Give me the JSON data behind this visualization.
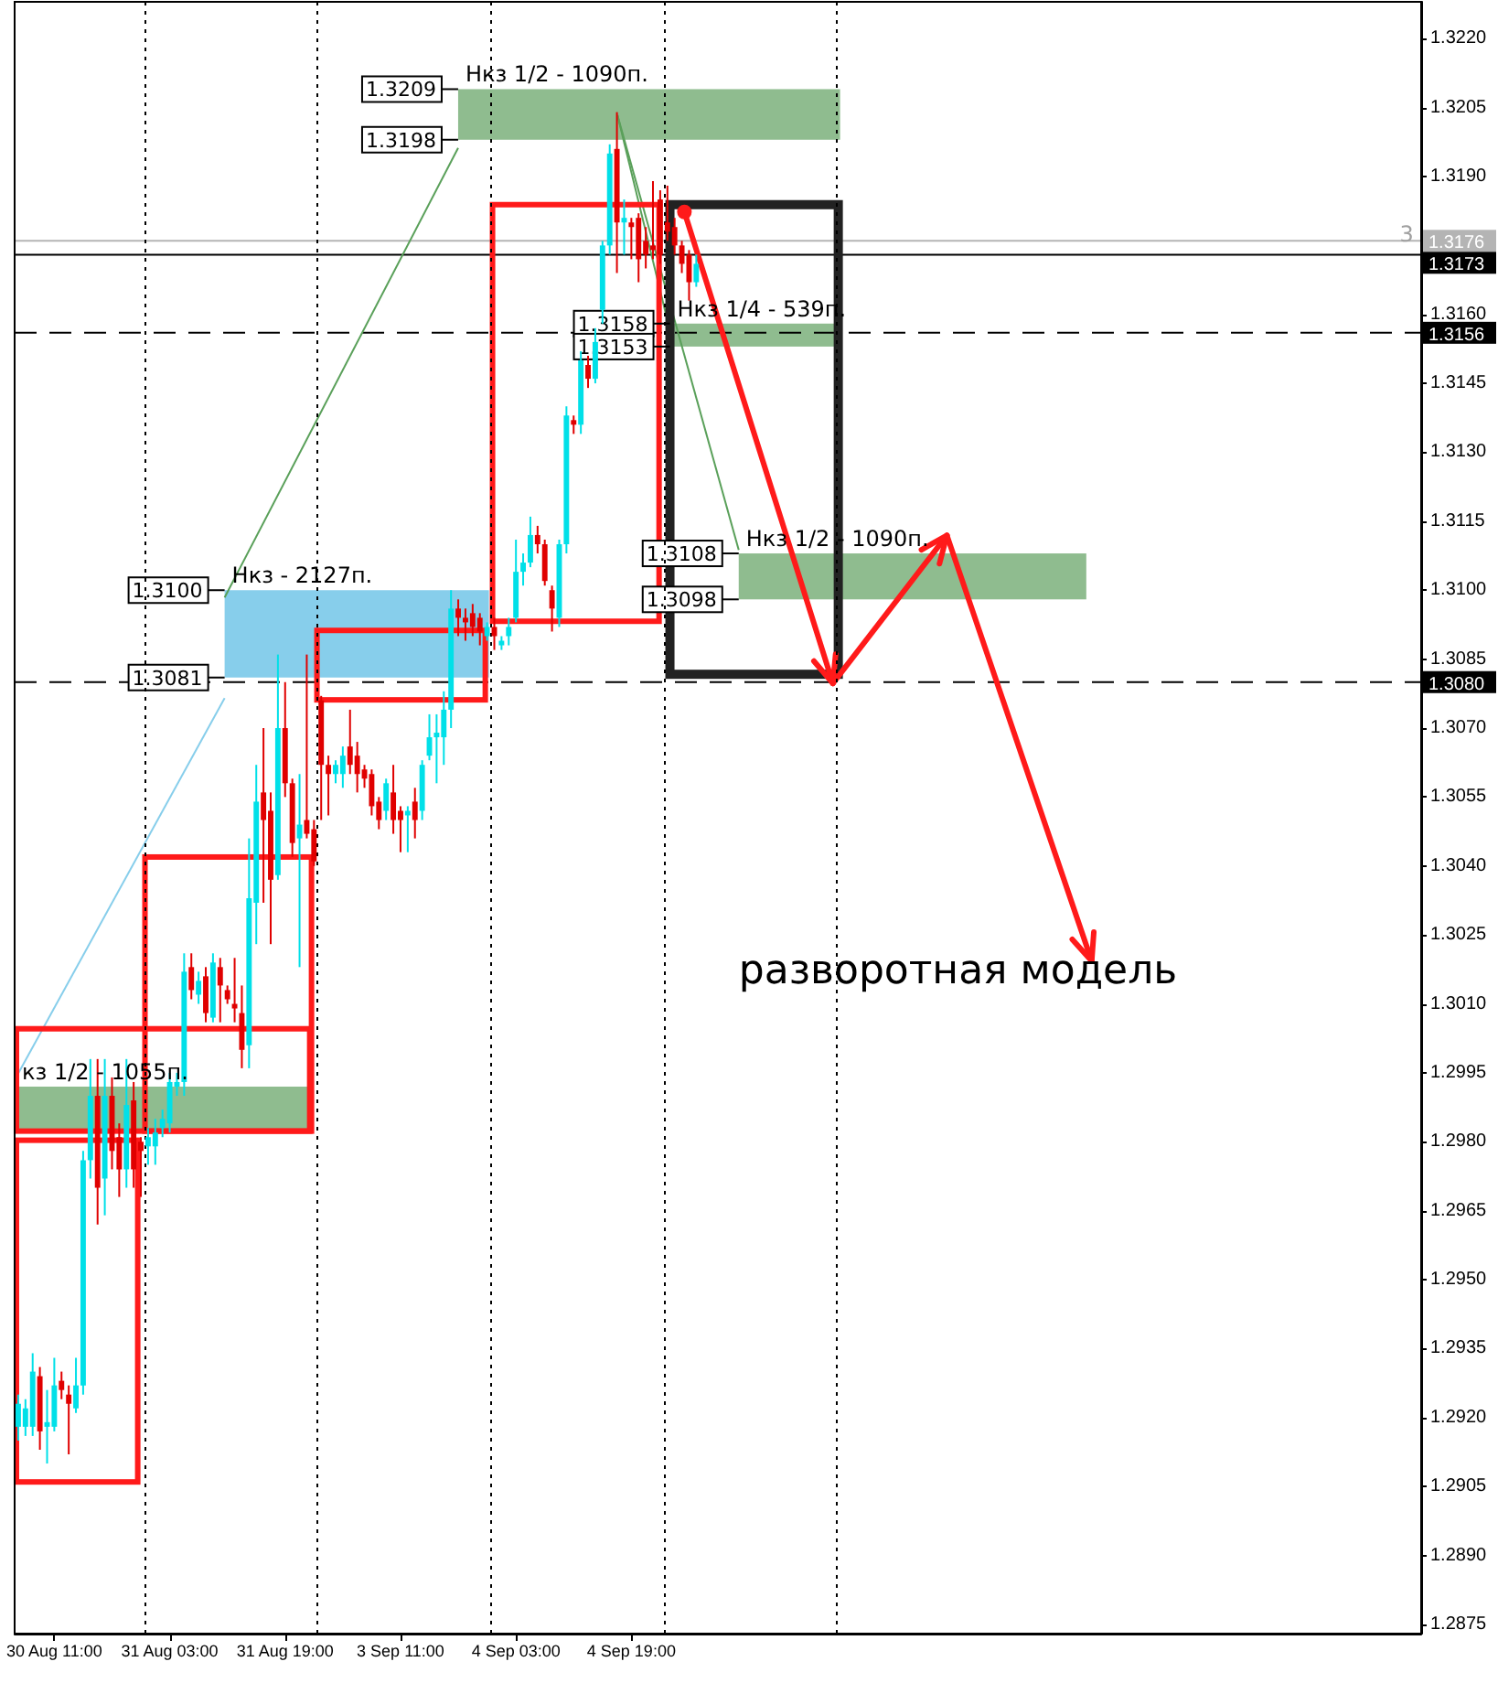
{
  "chart_data": {
    "type": "candlestick",
    "categories": [
      null,
      null,
      null,
      null,
      null,
      "30 Aug 11:00",
      null,
      null,
      null,
      null,
      null,
      null,
      null,
      null,
      null,
      null,
      null,
      null,
      null,
      null,
      null,
      "31 Aug 03:00",
      null,
      null,
      null,
      null,
      null,
      null,
      null,
      null,
      null,
      null,
      null,
      null,
      null,
      null,
      null,
      "31 Aug 19:00",
      null,
      null,
      null,
      null,
      null,
      null,
      null,
      null,
      null,
      null,
      null,
      null,
      null,
      null,
      null,
      "3 Sep 11:00",
      null,
      null,
      null,
      null,
      null,
      null,
      null,
      null,
      null,
      null,
      null,
      null,
      null,
      null,
      null,
      "4 Sep 03:00",
      null,
      null,
      null,
      null,
      null,
      null,
      null,
      null,
      null,
      null,
      null,
      null,
      null,
      null,
      null,
      "4 Sep 19:00",
      null,
      null,
      null,
      null,
      null,
      null,
      null,
      null,
      null,
      null,
      null,
      null,
      null,
      null,
      null,
      null,
      null,
      null,
      null,
      null,
      null,
      null,
      null,
      null,
      null,
      null,
      null,
      null,
      null,
      null,
      null,
      null,
      null,
      null,
      null,
      null,
      null,
      null,
      null,
      null,
      null,
      null,
      null,
      null,
      null,
      null,
      null,
      null,
      null,
      null,
      null,
      null,
      null,
      null,
      null,
      null,
      null,
      null,
      null,
      null,
      null,
      null,
      null,
      null,
      null,
      null,
      null,
      null,
      null,
      null,
      null,
      null,
      null,
      null,
      null,
      null,
      null,
      null,
      null,
      null,
      null,
      null,
      null,
      null,
      null,
      null,
      null,
      null,
      null,
      null,
      null,
      null,
      null,
      null,
      null,
      null,
      null,
      null,
      null,
      null,
      null,
      null,
      null,
      null,
      null,
      null,
      null,
      null,
      null
    ],
    "ohlc": [
      [
        1.2918,
        1.2925,
        1.2915,
        1.2923
      ],
      [
        1.2918,
        1.2924,
        1.2916,
        1.2922
      ],
      [
        1.2918,
        1.2934,
        1.2916,
        1.293
      ],
      [
        1.2929,
        1.2931,
        1.2913,
        1.2917
      ],
      [
        1.2918,
        1.2926,
        1.291,
        1.2919
      ],
      [
        1.2918,
        1.2933,
        1.2917,
        1.2927
      ],
      [
        1.2928,
        1.293,
        1.2924,
        1.2926
      ],
      [
        1.2925,
        1.2927,
        1.2912,
        1.2923
      ],
      [
        1.2922,
        1.2933,
        1.2921,
        1.2927
      ],
      [
        1.2927,
        1.2978,
        1.2925,
        1.2976
      ],
      [
        1.2976,
        1.2998,
        1.2972,
        1.299
      ],
      [
        1.299,
        1.2998,
        1.2962,
        1.297
      ],
      [
        1.2972,
        1.2998,
        1.2964,
        1.299
      ],
      [
        1.299,
        1.2994,
        1.2974,
        1.2978
      ],
      [
        1.2981,
        1.2984,
        1.2968,
        1.2974
      ],
      [
        1.2974,
        1.2998,
        1.297,
        1.2988
      ],
      [
        1.2989,
        1.2993,
        1.297,
        1.2974
      ],
      [
        1.298,
        1.2981,
        1.2968,
        1.2978
      ],
      [
        1.2979,
        1.2983,
        1.2975,
        1.2981
      ],
      [
        1.2979,
        1.2985,
        1.2975,
        1.2982
      ],
      [
        1.2983,
        1.2987,
        1.2981,
        1.2985
      ],
      [
        1.2984,
        1.2995,
        1.2982,
        1.2993
      ],
      [
        1.2992,
        1.2995,
        1.299,
        1.2993
      ],
      [
        1.2993,
        1.3021,
        1.299,
        1.3017
      ],
      [
        1.3018,
        1.3021,
        1.3011,
        1.3013
      ],
      [
        1.3012,
        1.3017,
        1.301,
        1.3015
      ],
      [
        1.3016,
        1.3018,
        1.3006,
        1.3008
      ],
      [
        1.3007,
        1.3021,
        1.3006,
        1.3019
      ],
      [
        1.3018,
        1.302,
        1.3006,
        1.3014
      ],
      [
        1.3013,
        1.3014,
        1.301,
        1.3011
      ],
      [
        1.301,
        1.302,
        1.3006,
        1.3009
      ],
      [
        1.3008,
        1.3014,
        1.2996,
        1.3
      ],
      [
        1.3001,
        1.3046,
        1.2996,
        1.3033
      ],
      [
        1.3032,
        1.3062,
        1.3023,
        1.3054
      ],
      [
        1.3056,
        1.307,
        1.3032,
        1.305
      ],
      [
        1.3052,
        1.3056,
        1.3023,
        1.3037
      ],
      [
        1.3038,
        1.3086,
        1.3037,
        1.307
      ],
      [
        1.307,
        1.308,
        1.3055,
        1.3058
      ],
      [
        1.3058,
        1.3059,
        1.3042,
        1.3045
      ],
      [
        1.3046,
        1.306,
        1.3018,
        1.3049
      ],
      [
        1.305,
        1.3086,
        1.3046,
        1.3047
      ],
      [
        1.3048,
        1.305,
        1.304,
        1.3041
      ],
      [
        1.3076,
        1.3077,
        1.305,
        1.3062
      ],
      [
        1.3062,
        1.3064,
        1.3051,
        1.306
      ],
      [
        1.306,
        1.3063,
        1.3058,
        1.3062
      ],
      [
        1.306,
        1.3066,
        1.3057,
        1.3064
      ],
      [
        1.3066,
        1.3074,
        1.306,
        1.3062
      ],
      [
        1.3064,
        1.3067,
        1.3056,
        1.306
      ],
      [
        1.3061,
        1.3062,
        1.3057,
        1.3059
      ],
      [
        1.306,
        1.3061,
        1.3051,
        1.3053
      ],
      [
        1.3054,
        1.3055,
        1.3048,
        1.305
      ],
      [
        1.3052,
        1.3059,
        1.305,
        1.3058
      ],
      [
        1.3056,
        1.3062,
        1.3047,
        1.305
      ],
      [
        1.3052,
        1.3053,
        1.3043,
        1.305
      ],
      [
        1.3051,
        1.3053,
        1.3043,
        1.3052
      ],
      [
        1.3054,
        1.3057,
        1.3046,
        1.305
      ],
      [
        1.3052,
        1.3063,
        1.305,
        1.3062
      ],
      [
        1.3064,
        1.3073,
        1.3063,
        1.3068
      ],
      [
        1.3068,
        1.3073,
        1.3058,
        1.3069
      ],
      [
        1.3068,
        1.3078,
        1.3062,
        1.3074
      ],
      [
        1.3074,
        1.31,
        1.307,
        1.3096
      ],
      [
        1.3096,
        1.3098,
        1.309,
        1.3094
      ],
      [
        1.3094,
        1.3096,
        1.3089,
        1.3093
      ],
      [
        1.3095,
        1.3097,
        1.309,
        1.3092
      ],
      [
        1.3094,
        1.3095,
        1.3088,
        1.3091
      ],
      [
        1.309,
        1.3093,
        1.3089,
        1.3092
      ],
      [
        1.3092,
        1.3094,
        1.3087,
        1.309
      ],
      [
        1.3088,
        1.309,
        1.3087,
        1.3089
      ],
      [
        1.309,
        1.3094,
        1.3088,
        1.3092
      ],
      [
        1.3094,
        1.3111,
        1.3093,
        1.3104
      ],
      [
        1.3104,
        1.3108,
        1.3101,
        1.3106
      ],
      [
        1.3106,
        1.3116,
        1.3105,
        1.3112
      ],
      [
        1.3112,
        1.3114,
        1.3108,
        1.311
      ],
      [
        1.311,
        1.3111,
        1.3101,
        1.3102
      ],
      [
        1.31,
        1.3101,
        1.3091,
        1.3096
      ],
      [
        1.3094,
        1.3111,
        1.3092,
        1.311
      ],
      [
        1.311,
        1.314,
        1.3108,
        1.3138
      ],
      [
        1.3137,
        1.3138,
        1.3134,
        1.3136
      ],
      [
        1.3136,
        1.3152,
        1.3134,
        1.315
      ],
      [
        1.3149,
        1.3151,
        1.3144,
        1.3146
      ],
      [
        1.3146,
        1.3157,
        1.3145,
        1.3154
      ],
      [
        1.3161,
        1.3176,
        1.3158,
        1.3175
      ],
      [
        1.3175,
        1.3197,
        1.3173,
        1.3195
      ],
      [
        1.3196,
        1.3204,
        1.3169,
        1.318
      ],
      [
        1.318,
        1.3185,
        1.3173,
        1.3181
      ],
      [
        1.318,
        1.3181,
        1.3172,
        1.3179
      ],
      [
        1.3181,
        1.3182,
        1.3167,
        1.3172
      ],
      [
        1.3176,
        1.3179,
        1.317,
        1.3173
      ],
      [
        1.3175,
        1.3189,
        1.3172,
        1.3174
      ],
      [
        1.3185,
        1.3187,
        1.3171,
        1.3173
      ],
      [
        1.318,
        1.3188,
        1.3176,
        1.3178
      ],
      [
        1.3179,
        1.3181,
        1.3173,
        1.3175
      ],
      [
        1.3175,
        1.3176,
        1.3169,
        1.3171
      ],
      [
        1.3173,
        1.3174,
        1.3163,
        1.3167
      ],
      [
        1.3167,
        1.3173,
        1.3166,
        1.3171
      ],
      null,
      null,
      null,
      null,
      null,
      null,
      null,
      null,
      null,
      null,
      null,
      null,
      null,
      null,
      null,
      null,
      null,
      null,
      null,
      null,
      null,
      null,
      null,
      null,
      null,
      null,
      null,
      null,
      null,
      null,
      null,
      null,
      null,
      null,
      null,
      null,
      null,
      null,
      null,
      null,
      null,
      null,
      null,
      null,
      null,
      null,
      null,
      null,
      null,
      null,
      null,
      null,
      null,
      null,
      null,
      null,
      null,
      null,
      null,
      null,
      null,
      null,
      null,
      null,
      null,
      null,
      null,
      null,
      null,
      null,
      null,
      null,
      null,
      null,
      null,
      null,
      null,
      null,
      null,
      null,
      null,
      null,
      null,
      null,
      null,
      null,
      null,
      null,
      null,
      null,
      null,
      null,
      null,
      null,
      null,
      null,
      null,
      null,
      null,
      null
    ],
    "colors": [
      "#00e0e8",
      "#00e0e8",
      "#00e0e8",
      "#e00000",
      "#00e0e8",
      "#00e0e8",
      "#e00000",
      "#e00000",
      "#00e0e8",
      "#00e0e8",
      "#00e0e8",
      "#e00000",
      "#00e0e8",
      "#e00000",
      "#e00000",
      "#00e0e8",
      "#e00000",
      "#e00000",
      "#00e0e8",
      "#00e0e8",
      "#00e0e8",
      "#00e0e8",
      "#00e0e8",
      "#00e0e8",
      "#e00000",
      "#00e0e8",
      "#e00000",
      "#00e0e8",
      "#e00000",
      "#e00000",
      "#e00000",
      "#e00000",
      "#00e0e8",
      "#00e0e8",
      "#e00000",
      "#e00000",
      "#00e0e8",
      "#e00000",
      "#e00000",
      "#00e0e8",
      "#e00000",
      "#e00000",
      "#e00000",
      "#e00000",
      "#00e0e8",
      "#00e0e8",
      "#e00000",
      "#e00000",
      "#e00000",
      "#e00000",
      "#e00000",
      "#00e0e8",
      "#e00000",
      "#e00000",
      "#00e0e8",
      "#e00000",
      "#00e0e8",
      "#00e0e8",
      "#00e0e8",
      "#00e0e8",
      "#00e0e8",
      "#e00000",
      "#e00000",
      "#e00000",
      "#e00000",
      "#00e0e8",
      "#e00000",
      "#00e0e8",
      "#00e0e8",
      "#00e0e8",
      "#00e0e8",
      "#00e0e8",
      "#e00000",
      "#e00000",
      "#e00000",
      "#00e0e8",
      "#00e0e8",
      "#e00000",
      "#00e0e8",
      "#e00000",
      "#00e0e8",
      "#00e0e8",
      "#00e0e8",
      "#e00000",
      "#00e0e8",
      "#e00000",
      "#e00000",
      "#e00000",
      "#e00000",
      "#e00000",
      "#e00000",
      "#e00000",
      "#e00000",
      "#e00000",
      "#00e0e8",
      null,
      null,
      null,
      null,
      null,
      null,
      null,
      null,
      null,
      null,
      null,
      null,
      null,
      null,
      null,
      null,
      null,
      null,
      null,
      null,
      null,
      null,
      null,
      null,
      null,
      null,
      null,
      null,
      null,
      null,
      null,
      null,
      null,
      null,
      null,
      null,
      null,
      null,
      null,
      null,
      null,
      null,
      null,
      null,
      null,
      null,
      null,
      null,
      null,
      null,
      null,
      null,
      null,
      null,
      null,
      null,
      null,
      null,
      null,
      null,
      null,
      null,
      null,
      null,
      null,
      null,
      null,
      null,
      null,
      null,
      null,
      null,
      null,
      null,
      null,
      null,
      null,
      null,
      null,
      null,
      null,
      null,
      null,
      null,
      null,
      null,
      null,
      null,
      null,
      null,
      null,
      null,
      null,
      null,
      null,
      null,
      null,
      null,
      null,
      null
    ],
    "ylim": [
      1.2873,
      1.3228
    ],
    "yticks": [
      1.2875,
      {
        "value": 1.289,
        "label": "1.2890"
      },
      1.2905,
      {
        "value": 1.292,
        "label": "1.2920"
      },
      1.2935,
      {
        "value": 1.295,
        "label": "1.2950"
      },
      1.2965,
      {
        "value": 1.298,
        "label": "1.2980"
      },
      1.2995,
      {
        "value": 1.301,
        "label": "1.3010"
      },
      1.3025,
      {
        "value": 1.304,
        "label": "1.3040"
      },
      1.3055,
      {
        "value": 1.307,
        "label": "1.3070"
      },
      1.3085,
      {
        "value": 1.31,
        "label": "1.3100"
      },
      1.3115,
      {
        "value": 1.313,
        "label": "1.3130"
      },
      1.3145,
      {
        "value": 1.316,
        "label": "1.3160"
      },
      {
        "value": 1.319,
        "label": "1.3190"
      },
      1.3205,
      {
        "value": 1.322,
        "label": "1.3220"
      }
    ],
    "ref_lines": [
      {
        "axis": "y",
        "value": 1.3156,
        "label": "1.3156",
        "color": "#000000",
        "line_style": "dashed"
      },
      {
        "axis": "y",
        "value": 1.308,
        "label": "1.3080",
        "color": "#000000",
        "line_style": "dashed"
      },
      {
        "axis": "y",
        "value": 1.3176,
        "label": "1.3176",
        "color": "#b4b4b4",
        "line_style": "solid"
      },
      {
        "axis": "y",
        "value": 1.3173,
        "label": "1.3173",
        "color": "#000000",
        "line_style": "solid"
      }
    ],
    "bands": [
      {
        "axis": "y",
        "from": 1.3198,
        "to": 1.3209,
        "label": "Нкз 1/2 - 1090п.",
        "color": "#8fbc8f"
      },
      {
        "axis": "y",
        "from": 1.3153,
        "to": 1.3158,
        "label": "Нкз 1/4 - 539п.",
        "color": "#8fbc8f"
      },
      {
        "axis": "y",
        "from": 1.3098,
        "to": 1.3108,
        "label": "Нкз 1/2 - 1090п.",
        "color": "#8fbc8f"
      },
      {
        "axis": "y",
        "from": 1.3081,
        "to": 1.31,
        "label": "Нкз - 2127п.",
        "color": "#87ceeb"
      },
      {
        "axis": "y",
        "from": 1.2982,
        "to": 1.2992,
        "label": "кз 1/2 - 1055п.",
        "color": "#8fbc8f"
      }
    ],
    "annotations": [
      {
        "text": "1.3209",
        "y": 1.3209
      },
      {
        "text": "1.3198",
        "y": 1.3198
      },
      {
        "text": "1.3158",
        "y": 1.3158
      },
      {
        "text": "1.3153",
        "y": 1.3153
      },
      {
        "text": "1.3108",
        "y": 1.3108
      },
      {
        "text": "1.3098",
        "y": 1.3098
      },
      {
        "text": "1.3100",
        "y": 1.31
      },
      {
        "text": "1.3081",
        "y": 1.3081
      },
      "разворотная модель",
      "3"
    ],
    "grid": "x"
  }
}
